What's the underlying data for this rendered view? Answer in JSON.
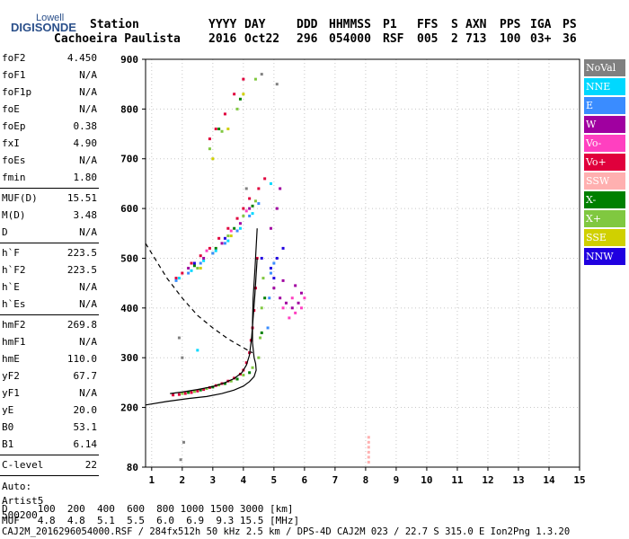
{
  "logo": {
    "top": "Lowell",
    "main": "DIGISONDE"
  },
  "header": {
    "row1": [
      "Station",
      "YYYY",
      "DAY",
      "DDD",
      "HHMMSS",
      "P1",
      "FFS",
      "S",
      "AXN",
      "PPS",
      "IGA",
      "PS"
    ],
    "row2": [
      "Cachoeira Paulista",
      "2016",
      "Oct22",
      "296",
      "054000",
      "RSF",
      "005",
      "2",
      "713",
      "100",
      "03+",
      "36"
    ]
  },
  "params": [
    {
      "n": "foF2",
      "v": "4.450"
    },
    {
      "n": "foF1",
      "v": "N/A"
    },
    {
      "n": "foF1p",
      "v": "N/A"
    },
    {
      "n": "foE",
      "v": "N/A"
    },
    {
      "n": "foEp",
      "v": "0.38"
    },
    {
      "n": "fxI",
      "v": "4.90"
    },
    {
      "n": "foEs",
      "v": "N/A"
    },
    {
      "n": "fmin",
      "v": "1.80"
    },
    {
      "n": "MUF(D)",
      "v": "15.51"
    },
    {
      "n": "M(D)",
      "v": "3.48"
    },
    {
      "n": "D",
      "v": "N/A"
    },
    {
      "n": "h`F",
      "v": "223.5"
    },
    {
      "n": "h`F2",
      "v": "223.5"
    },
    {
      "n": "h`E",
      "v": "N/A"
    },
    {
      "n": "h`Es",
      "v": "N/A"
    },
    {
      "n": "hmF2",
      "v": "269.8"
    },
    {
      "n": "hmF1",
      "v": "N/A"
    },
    {
      "n": "hmE",
      "v": "110.0"
    },
    {
      "n": "yF2",
      "v": "67.7"
    },
    {
      "n": "yF1",
      "v": "N/A"
    },
    {
      "n": "yE",
      "v": "20.0"
    },
    {
      "n": "B0",
      "v": "53.1"
    },
    {
      "n": "B1",
      "v": "6.14"
    },
    {
      "n": "C-level",
      "v": "22"
    }
  ],
  "auto": [
    "Auto:",
    "Artist5",
    "500200"
  ],
  "bottom": {
    "d_row": "D     100  200  400  600  800 1000 1500 3000 [km]",
    "muf_row": "MUF   4.8  4.8  5.1  5.5  6.0  6.9  9.3 15.5 [MHz]",
    "footer": "CAJ2M_2016296054000.RSF / 284fx512h 50 kHz 2.5 km / DPS-4D CAJ2M 023 / 22.7 S 315.0 E Ion2Png 1.3.20"
  },
  "legend": [
    {
      "label": "NoVal",
      "color": "#808080"
    },
    {
      "label": "NNE",
      "color": "#00d8ff"
    },
    {
      "label": "E",
      "color": "#3a8cff"
    },
    {
      "label": "W",
      "color": "#a000a0"
    },
    {
      "label": "Vo-",
      "color": "#ff40c0"
    },
    {
      "label": "Vo+",
      "color": "#e0003c"
    },
    {
      "label": "SSW",
      "color": "#ffb0b0"
    },
    {
      "label": "X-",
      "color": "#008000"
    },
    {
      "label": "X+",
      "color": "#80c840"
    },
    {
      "label": "SSE",
      "color": "#d0d000"
    },
    {
      "label": "NNW",
      "color": "#2000e0"
    }
  ],
  "chart_data": {
    "type": "scatter",
    "xlabel": "",
    "ylabel": "",
    "xlim": [
      0.8,
      15
    ],
    "ylim": [
      80,
      900
    ],
    "x_ticks": [
      1,
      2,
      3,
      4,
      5,
      6,
      7,
      8,
      9,
      10,
      11,
      12,
      13,
      14,
      15
    ],
    "y_ticks": [
      80,
      200,
      300,
      400,
      500,
      600,
      700,
      800,
      900
    ],
    "grid": true,
    "series": [
      {
        "name": "Vo+",
        "color": "#e0003c",
        "points": [
          [
            1.7,
            225
          ],
          [
            1.9,
            226
          ],
          [
            2.1,
            228
          ],
          [
            2.3,
            230
          ],
          [
            2.5,
            233
          ],
          [
            2.7,
            236
          ],
          [
            2.9,
            240
          ],
          [
            3.1,
            244
          ],
          [
            3.3,
            248
          ],
          [
            3.5,
            253
          ],
          [
            3.7,
            259
          ],
          [
            3.9,
            267
          ],
          [
            4.0,
            275
          ],
          [
            4.1,
            290
          ],
          [
            4.2,
            310
          ],
          [
            4.25,
            335
          ],
          [
            4.3,
            360
          ],
          [
            4.35,
            395
          ],
          [
            4.4,
            440
          ],
          [
            4.45,
            500
          ],
          [
            1.8,
            460
          ],
          [
            2.0,
            470
          ],
          [
            2.3,
            490
          ],
          [
            2.6,
            505
          ],
          [
            2.9,
            520
          ],
          [
            3.2,
            540
          ],
          [
            3.5,
            560
          ],
          [
            3.8,
            580
          ],
          [
            4.0,
            600
          ],
          [
            4.2,
            620
          ],
          [
            2.9,
            740
          ],
          [
            3.1,
            760
          ],
          [
            3.4,
            790
          ],
          [
            3.7,
            830
          ],
          [
            4.0,
            860
          ],
          [
            4.5,
            640
          ],
          [
            4.7,
            660
          ]
        ]
      },
      {
        "name": "X+",
        "color": "#80c840",
        "points": [
          [
            2.0,
            228
          ],
          [
            2.4,
            232
          ],
          [
            2.8,
            238
          ],
          [
            3.2,
            245
          ],
          [
            3.6,
            253
          ],
          [
            4.0,
            265
          ],
          [
            4.3,
            280
          ],
          [
            4.5,
            300
          ],
          [
            4.55,
            340
          ],
          [
            4.6,
            400
          ],
          [
            4.65,
            460
          ],
          [
            2.5,
            480
          ],
          [
            3.0,
            510
          ],
          [
            3.5,
            545
          ],
          [
            4.0,
            585
          ],
          [
            4.4,
            615
          ],
          [
            2.9,
            720
          ],
          [
            3.3,
            755
          ],
          [
            3.8,
            800
          ],
          [
            4.4,
            860
          ]
        ]
      },
      {
        "name": "X-",
        "color": "#008000",
        "points": [
          [
            2.2,
            230
          ],
          [
            2.6,
            235
          ],
          [
            3.0,
            241
          ],
          [
            3.4,
            248
          ],
          [
            3.8,
            257
          ],
          [
            4.2,
            270
          ],
          [
            4.6,
            350
          ],
          [
            4.7,
            420
          ],
          [
            2.4,
            485
          ],
          [
            3.1,
            520
          ],
          [
            3.7,
            560
          ],
          [
            4.3,
            605
          ],
          [
            3.2,
            760
          ],
          [
            3.9,
            820
          ]
        ]
      },
      {
        "name": "E",
        "color": "#3a8cff",
        "points": [
          [
            1.8,
            455
          ],
          [
            2.2,
            470
          ],
          [
            2.6,
            490
          ],
          [
            3.0,
            510
          ],
          [
            3.4,
            530
          ],
          [
            3.8,
            555
          ],
          [
            4.2,
            585
          ],
          [
            4.5,
            610
          ],
          [
            4.8,
            360
          ],
          [
            4.85,
            420
          ],
          [
            4.9,
            470
          ],
          [
            5.0,
            490
          ]
        ]
      },
      {
        "name": "NNE",
        "color": "#00d8ff",
        "points": [
          [
            1.9,
            460
          ],
          [
            2.3,
            475
          ],
          [
            2.7,
            495
          ],
          [
            3.1,
            515
          ],
          [
            3.5,
            535
          ],
          [
            3.9,
            560
          ],
          [
            4.3,
            590
          ],
          [
            4.9,
            650
          ],
          [
            2.5,
            315
          ]
        ]
      },
      {
        "name": "W",
        "color": "#a000a0",
        "points": [
          [
            5.0,
            440
          ],
          [
            5.2,
            420
          ],
          [
            5.4,
            410
          ],
          [
            5.6,
            400
          ],
          [
            5.8,
            410
          ],
          [
            5.9,
            430
          ],
          [
            5.7,
            445
          ],
          [
            5.3,
            455
          ],
          [
            5.1,
            600
          ],
          [
            5.2,
            640
          ],
          [
            4.9,
            560
          ],
          [
            2.2,
            480
          ],
          [
            2.7,
            500
          ],
          [
            3.3,
            530
          ],
          [
            3.9,
            570
          ],
          [
            4.2,
            600
          ]
        ]
      },
      {
        "name": "Vo-",
        "color": "#ff40c0",
        "points": [
          [
            5.3,
            400
          ],
          [
            5.5,
            380
          ],
          [
            5.7,
            390
          ],
          [
            5.9,
            400
          ],
          [
            6.0,
            420
          ],
          [
            5.6,
            420
          ],
          [
            2.8,
            515
          ],
          [
            3.6,
            555
          ],
          [
            4.1,
            595
          ]
        ]
      },
      {
        "name": "NNW",
        "color": "#2000e0",
        "points": [
          [
            4.9,
            480
          ],
          [
            5.1,
            500
          ],
          [
            5.3,
            520
          ],
          [
            5.0,
            460
          ],
          [
            2.4,
            490
          ],
          [
            3.4,
            540
          ],
          [
            4.6,
            500
          ]
        ]
      },
      {
        "name": "SSE",
        "color": "#d0d000",
        "points": [
          [
            3.0,
            700
          ],
          [
            3.5,
            760
          ],
          [
            4.0,
            830
          ],
          [
            2.6,
            480
          ],
          [
            3.6,
            545
          ]
        ]
      },
      {
        "name": "SSW",
        "color": "#ffb0b0",
        "points": [
          [
            8.1,
            90
          ],
          [
            8.1,
            100
          ],
          [
            8.1,
            110
          ],
          [
            8.1,
            120
          ],
          [
            8.1,
            130
          ],
          [
            8.1,
            140
          ]
        ]
      },
      {
        "name": "NoVal",
        "color": "#808080",
        "points": [
          [
            1.9,
            340
          ],
          [
            2.0,
            300
          ],
          [
            1.95,
            95
          ],
          [
            2.05,
            130
          ],
          [
            4.1,
            640
          ],
          [
            5.1,
            850
          ],
          [
            4.6,
            870
          ]
        ]
      }
    ],
    "lines": [
      {
        "name": "dashed",
        "dash": true,
        "color": "#000",
        "points": [
          [
            0.8,
            530
          ],
          [
            1.1,
            500
          ],
          [
            1.5,
            460
          ],
          [
            2.0,
            420
          ],
          [
            2.5,
            385
          ],
          [
            3.0,
            360
          ],
          [
            3.5,
            338
          ],
          [
            4.0,
            320
          ],
          [
            4.3,
            310
          ]
        ]
      },
      {
        "name": "profile",
        "dash": false,
        "color": "#000",
        "points": [
          [
            0.8,
            205
          ],
          [
            1.5,
            212
          ],
          [
            2.2,
            218
          ],
          [
            2.8,
            222
          ],
          [
            3.3,
            228
          ],
          [
            3.7,
            235
          ],
          [
            4.0,
            243
          ],
          [
            4.2,
            252
          ],
          [
            4.35,
            262
          ],
          [
            4.42,
            275
          ],
          [
            4.4,
            288
          ],
          [
            4.35,
            300
          ],
          [
            4.3,
            330
          ],
          [
            4.3,
            370
          ],
          [
            4.32,
            420
          ],
          [
            4.38,
            480
          ],
          [
            4.45,
            560
          ]
        ]
      },
      {
        "name": "trace",
        "dash": false,
        "color": "#000",
        "points": [
          [
            1.6,
            228
          ],
          [
            2.0,
            231
          ],
          [
            2.5,
            236
          ],
          [
            3.0,
            242
          ],
          [
            3.4,
            250
          ],
          [
            3.7,
            258
          ],
          [
            3.95,
            270
          ],
          [
            4.1,
            285
          ],
          [
            4.2,
            305
          ],
          [
            4.27,
            340
          ],
          [
            4.32,
            380
          ],
          [
            4.38,
            430
          ],
          [
            4.45,
            500
          ]
        ]
      }
    ]
  }
}
